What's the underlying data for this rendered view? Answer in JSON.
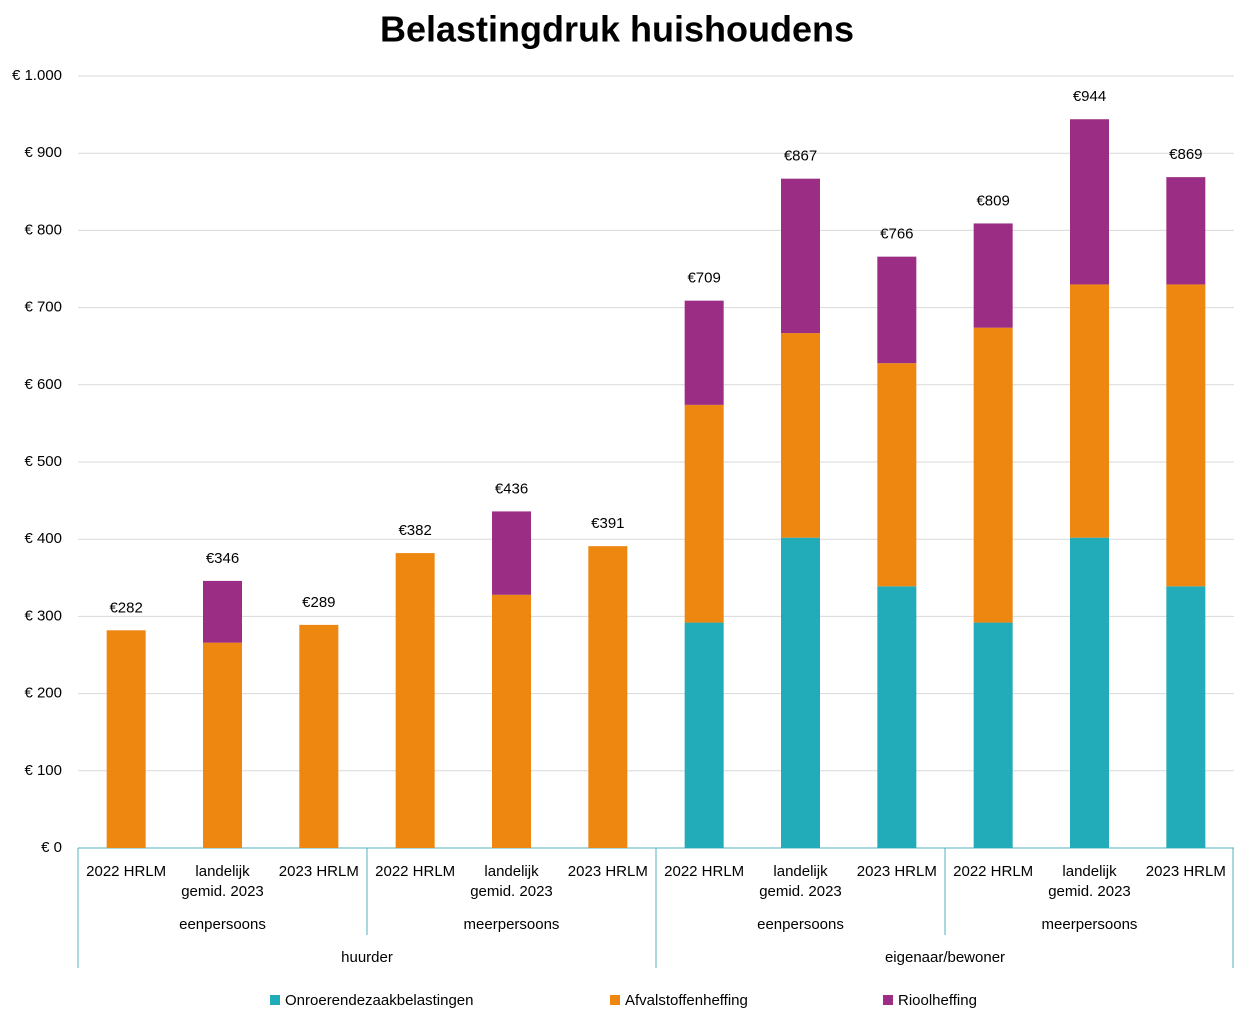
{
  "chart_data": {
    "type": "stacked-bar",
    "title": "Belastingdruk huishoudens",
    "groups": [
      {
        "name": "huurder",
        "subgroups": [
          {
            "name": "eenpersoons",
            "categories": [
              "2022 HRLM",
              "landelijk gemid. 2023",
              "2023 HRLM"
            ]
          },
          {
            "name": "meerpersoons",
            "categories": [
              "2022 HRLM",
              "landelijk gemid. 2023",
              "2023 HRLM"
            ]
          }
        ]
      },
      {
        "name": "eigenaar/bewoner",
        "subgroups": [
          {
            "name": "eenpersoons",
            "categories": [
              "2022 HRLM",
              "landelijk gemid. 2023",
              "2023 HRLM"
            ]
          },
          {
            "name": "meerpersoons",
            "categories": [
              "2022 HRLM",
              "landelijk gemid. 2023",
              "2023 HRLM"
            ]
          }
        ]
      }
    ],
    "series": [
      {
        "name": "Onroerendezaakbelastingen",
        "color": "#22abb8",
        "values": [
          0,
          0,
          0,
          0,
          0,
          0,
          292,
          402,
          339,
          292,
          402,
          339
        ]
      },
      {
        "name": "Afvalstoffenheffing",
        "color": "#ee8710",
        "values": [
          282,
          266,
          289,
          382,
          328,
          391,
          282,
          265,
          289,
          382,
          328,
          391
        ]
      },
      {
        "name": "Rioolheffing",
        "color": "#9b2d84",
        "values": [
          0,
          80,
          0,
          0,
          108,
          0,
          135,
          200,
          138,
          135,
          214,
          139
        ]
      }
    ],
    "totals": [
      282,
      346,
      289,
      382,
      436,
      391,
      709,
      867,
      766,
      809,
      944,
      869
    ],
    "total_labels": [
      "€282",
      "€346",
      "€289",
      "€382",
      "€436",
      "€391",
      "€709",
      "€867",
      "€766",
      "€809",
      "€944",
      "€869"
    ],
    "ylim": [
      0,
      1000
    ],
    "yticks": [
      {
        "value": 0,
        "label": "€ 0"
      },
      {
        "value": 100,
        "label": "€ 100"
      },
      {
        "value": 200,
        "label": "€ 200"
      },
      {
        "value": 300,
        "label": "€ 300"
      },
      {
        "value": 400,
        "label": "€ 400"
      },
      {
        "value": 500,
        "label": "€ 500"
      },
      {
        "value": 600,
        "label": "€ 600"
      },
      {
        "value": 700,
        "label": "€ 700"
      },
      {
        "value": 800,
        "label": "€ 800"
      },
      {
        "value": 900,
        "label": "€ 900"
      },
      {
        "value": 1000,
        "label": "€ 1.000"
      }
    ],
    "grid": true
  }
}
